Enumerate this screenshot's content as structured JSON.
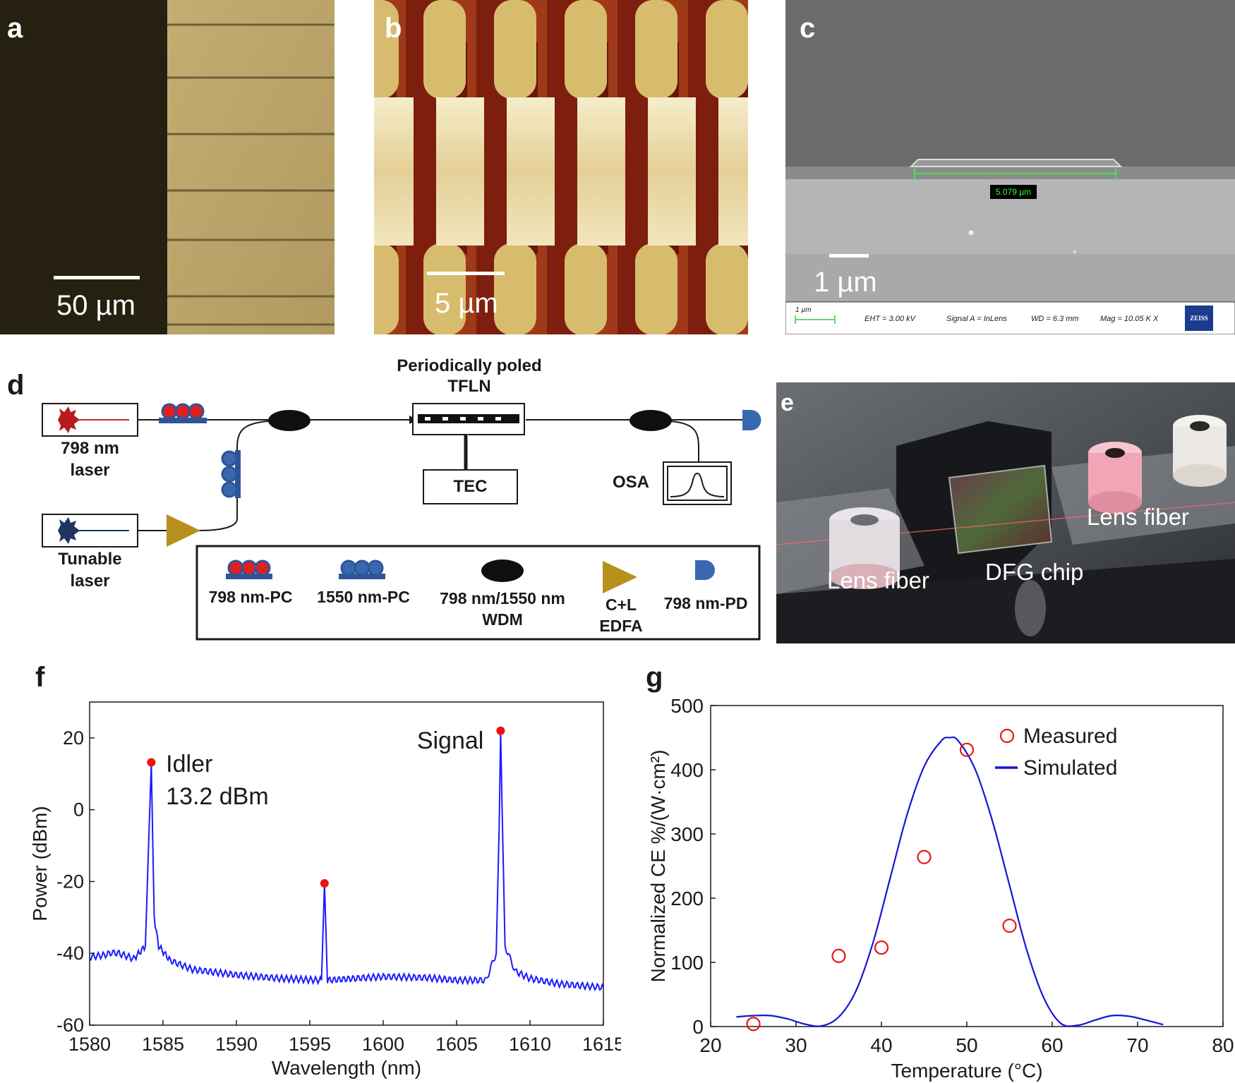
{
  "panel_a": {
    "letter": "a",
    "scale_label": "50 µm"
  },
  "panel_b": {
    "letter": "b",
    "scale_label": "5 µm"
  },
  "panel_c": {
    "letter": "c",
    "measurement": "5.079 µm",
    "scale_label": "1 µm",
    "info_bar": {
      "scale": "1 µm",
      "eht": "EHT = 3.00 kV",
      "signal": "Signal A = InLens",
      "wd": "WD = 6.3 mm",
      "mag": "Mag = 10.05 K X",
      "brand": "ZEISS"
    }
  },
  "panel_d": {
    "letter": "d",
    "laser1": [
      "798 nm",
      "laser"
    ],
    "laser2": [
      "Tunable",
      "laser"
    ],
    "chip_title": [
      "Periodically poled",
      "TFLN"
    ],
    "tec": "TEC",
    "osa": "OSA",
    "legend": {
      "pc798": "798 nm-PC",
      "pc1550": "1550 nm-PC",
      "wdm": [
        "798 nm/1550 nm",
        "WDM"
      ],
      "edfa": [
        "C+L",
        "EDFA"
      ],
      "pd": "798 nm-PD"
    },
    "colors": {
      "red_pc": "#e02020",
      "blue_pc": "#3a68b0",
      "edfa": "#b8901c",
      "pd": "#3a68b0"
    }
  },
  "panel_e": {
    "letter": "e",
    "labels": {
      "lens_left": "Lens fiber",
      "chip": "DFG chip",
      "lens_right": "Lens fiber"
    }
  },
  "chart_data": [
    {
      "panel": "f",
      "type": "line",
      "xlabel": "Wavelength (nm)",
      "ylabel": "Power (dBm)",
      "xlim": [
        1580,
        1615
      ],
      "ylim": [
        -60,
        30
      ],
      "xticks": [
        1580,
        1585,
        1590,
        1595,
        1600,
        1605,
        1610,
        1615
      ],
      "yticks": [
        -60,
        -40,
        -20,
        0,
        20
      ],
      "series": [
        {
          "color": "#1a1aff",
          "x": [
            1580,
            1581,
            1581.5,
            1582,
            1583,
            1583.8,
            1584.0,
            1584.2,
            1584.4,
            1584.7,
            1585.5,
            1587,
            1590,
            1593,
            1595.8,
            1596.0,
            1596.2,
            1598,
            1600,
            1603,
            1605,
            1607,
            1607.7,
            1607.9,
            1608.0,
            1608.1,
            1608.3,
            1609,
            1610,
            1612,
            1615
          ],
          "y": [
            -41,
            -40.5,
            -39.8,
            -40,
            -41.5,
            -38,
            -12,
            13,
            -30,
            -38,
            -42,
            -44.5,
            -46,
            -47,
            -47.5,
            -20.5,
            -47.5,
            -47,
            -46.5,
            -46.8,
            -47.5,
            -47.5,
            -40,
            -5,
            22,
            0,
            -38,
            -45,
            -47,
            -48.5,
            -49.5
          ]
        }
      ],
      "markers": [
        {
          "x": 1584.2,
          "y": 13.2,
          "color": "#ee1111"
        },
        {
          "x": 1596.0,
          "y": -20.5,
          "color": "#ee1111"
        },
        {
          "x": 1608.0,
          "y": 22,
          "color": "#ee1111"
        }
      ],
      "annotations": [
        {
          "text": "Idler",
          "x": 1585.2,
          "y": 10.5
        },
        {
          "text": "13.2 dBm",
          "x": 1585.2,
          "y": 1.5
        },
        {
          "text": "Signal",
          "x": 1602.3,
          "y": 17
        }
      ]
    },
    {
      "panel": "g",
      "type": "scatter",
      "xlabel": "Temperature (°C)",
      "ylabel": "Normalized CE %/(W·cm²)",
      "xlim": [
        20,
        80
      ],
      "ylim": [
        0,
        500
      ],
      "xticks": [
        20,
        30,
        40,
        50,
        60,
        70,
        80
      ],
      "yticks": [
        0,
        100,
        200,
        300,
        400,
        500
      ],
      "legend_position": "top-right",
      "series": [
        {
          "name": "Measured",
          "kind": "scatter",
          "color": "#e61919",
          "x": [
            25,
            35,
            40,
            45,
            50,
            55
          ],
          "y": [
            4,
            110,
            123,
            264,
            431,
            157
          ]
        },
        {
          "name": "Simulated",
          "kind": "line",
          "color": "#1515d6",
          "x": [
            23,
            25,
            27,
            29,
            31,
            33,
            35,
            37,
            39,
            41,
            43,
            45,
            47,
            48,
            49,
            51,
            53,
            55,
            57,
            59,
            61,
            63,
            65,
            67,
            69,
            71,
            73
          ],
          "y": [
            15,
            17,
            17,
            12,
            4,
            1,
            15,
            55,
            130,
            230,
            330,
            405,
            445,
            450,
            445,
            400,
            320,
            220,
            120,
            45,
            5,
            2,
            10,
            17,
            16,
            10,
            3
          ]
        }
      ]
    }
  ]
}
